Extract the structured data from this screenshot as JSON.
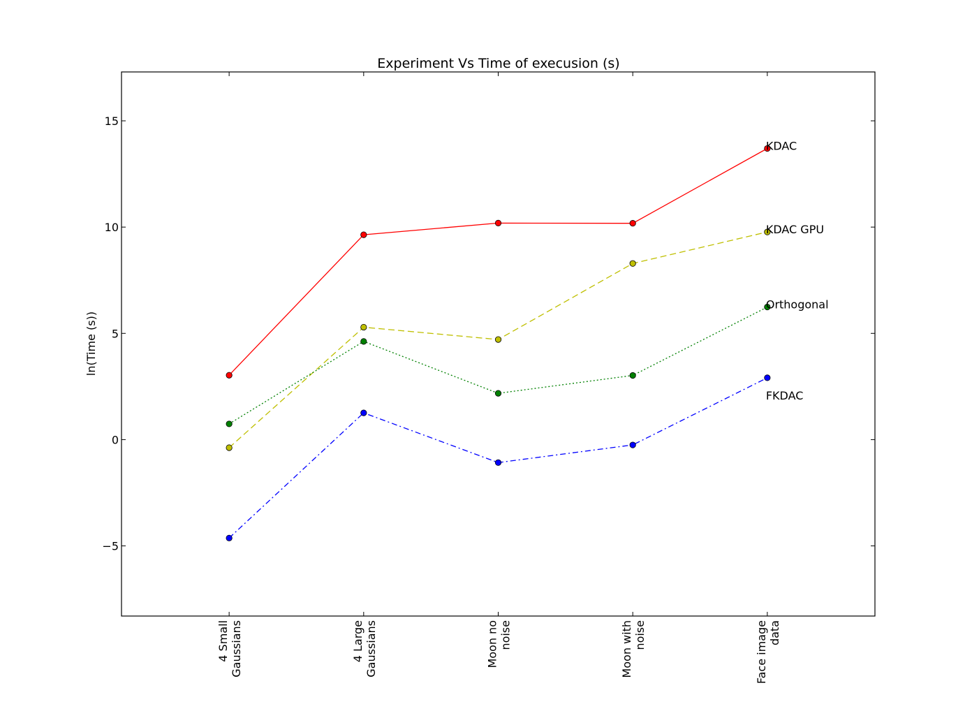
{
  "chart_data": {
    "type": "line",
    "title": "Experiment Vs Time of execusion (s)",
    "xlabel": "",
    "ylabel": "ln(Time (s))",
    "categories": [
      [
        "4 Small",
        "Gaussians"
      ],
      [
        "4 Large",
        "Gaussians"
      ],
      [
        "Moon no",
        "noise"
      ],
      [
        "Moon with",
        "noise"
      ],
      [
        "Face image",
        "data"
      ]
    ],
    "ylim": [
      -8.3,
      17.3
    ],
    "yticks": [
      -5,
      0,
      5,
      10,
      15
    ],
    "ytick_labels": [
      "−5",
      "0",
      "5",
      "10",
      "15"
    ],
    "grid": false,
    "series": [
      {
        "name": "KDAC",
        "values": [
          3.03,
          9.64,
          10.19,
          10.18,
          13.7
        ],
        "color": "#ff0000",
        "marker_color": "#ff0000",
        "dash": ""
      },
      {
        "name": "KDAC GPU",
        "values": [
          -0.38,
          5.29,
          4.71,
          8.29,
          9.77
        ],
        "color": "#bfbf00",
        "marker_color": "#bfbf00",
        "dash": "9,5"
      },
      {
        "name": "Orthogonal",
        "values": [
          0.74,
          4.62,
          2.18,
          3.02,
          6.24
        ],
        "color": "#008000",
        "marker_color": "#008000",
        "dash": "2,3"
      },
      {
        "name": "FKDAC",
        "values": [
          -4.63,
          1.26,
          -1.08,
          -0.25,
          2.91
        ],
        "color": "#0000ff",
        "marker_color": "#0000ff",
        "dash": "8,4,2,4"
      }
    ]
  }
}
